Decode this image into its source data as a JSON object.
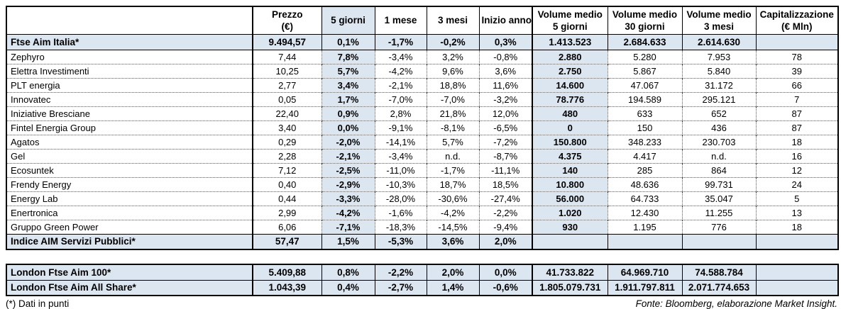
{
  "colors": {
    "highlight": "#dce6f1",
    "border": "#000000",
    "text": "#000000",
    "page_bg": "#ffffff"
  },
  "footnote": "(*) Dati in punti",
  "source": "Fonte: Bloomberg, elaborazione Market Insight.",
  "main_table": {
    "columns": [
      {
        "key": "name",
        "line1": "",
        "line2": "",
        "highlight": false
      },
      {
        "key": "prezzo",
        "line1": "Prezzo",
        "line2": "(€)",
        "highlight": false
      },
      {
        "key": "5-giorni",
        "line1": "5 giorni",
        "line2": "",
        "highlight": true
      },
      {
        "key": "1-mese",
        "line1": "1 mese",
        "line2": "",
        "highlight": false
      },
      {
        "key": "3-mesi",
        "line1": "3 mesi",
        "line2": "",
        "highlight": false
      },
      {
        "key": "inizio-anno",
        "line1": "Inizio anno",
        "line2": "",
        "highlight": false
      },
      {
        "key": "volume-medio-5-giorni",
        "line1": "Volume medio",
        "line2": "5 giorni",
        "highlight": false
      },
      {
        "key": "volume-medio-30-giorni",
        "line1": "Volume medio",
        "line2": "30 giorni",
        "highlight": false
      },
      {
        "key": "volume-medio-3-mesi",
        "line1": "Volume medio",
        "line2": "3 mesi",
        "highlight": false
      },
      {
        "key": "capitalizzazione",
        "line1": "Capitalizzazione",
        "line2": "(€ Mln)",
        "highlight": false
      }
    ],
    "rows": [
      {
        "type": "index",
        "name": "Ftse Aim Italia*",
        "values": [
          "9.494,57",
          "0,1%",
          "-1,7%",
          "-0,2%",
          "0,3%",
          "1.413.523",
          "2.684.633",
          "2.614.630",
          ""
        ]
      },
      {
        "type": "stock",
        "name": "Zephyro",
        "values": [
          "7,44",
          "7,8%",
          "-3,4%",
          "3,2%",
          "-0,8%",
          "2.880",
          "5.280",
          "7.953",
          "78"
        ]
      },
      {
        "type": "stock",
        "name": "Elettra Investimenti",
        "values": [
          "10,25",
          "5,7%",
          "-4,2%",
          "9,6%",
          "3,6%",
          "2.750",
          "5.867",
          "5.840",
          "39"
        ]
      },
      {
        "type": "stock",
        "name": "PLT energia",
        "values": [
          "2,77",
          "3,4%",
          "-2,1%",
          "18,8%",
          "11,6%",
          "14.600",
          "47.067",
          "31.172",
          "66"
        ]
      },
      {
        "type": "stock",
        "name": "Innovatec",
        "values": [
          "0,05",
          "1,7%",
          "-7,0%",
          "-7,0%",
          "-3,2%",
          "78.776",
          "194.589",
          "295.121",
          "7"
        ]
      },
      {
        "type": "stock",
        "name": "Iniziative Bresciane",
        "values": [
          "22,40",
          "0,9%",
          "2,8%",
          "21,8%",
          "12,0%",
          "480",
          "633",
          "652",
          "87"
        ]
      },
      {
        "type": "stock",
        "name": "Fintel Energia Group",
        "values": [
          "3,40",
          "0,0%",
          "-9,1%",
          "-8,1%",
          "-6,5%",
          "0",
          "150",
          "436",
          "87"
        ]
      },
      {
        "type": "stock",
        "name": "Agatos",
        "values": [
          "0,29",
          "-2,0%",
          "-14,1%",
          "5,7%",
          "-7,2%",
          "150.800",
          "348.233",
          "230.703",
          "18"
        ]
      },
      {
        "type": "stock",
        "name": "Gel",
        "values": [
          "2,28",
          "-2,1%",
          "-3,4%",
          "n.d.",
          "-8,7%",
          "4.375",
          "4.417",
          "n.d.",
          "16"
        ]
      },
      {
        "type": "stock",
        "name": "Ecosuntek",
        "values": [
          "7,12",
          "-2,5%",
          "-11,0%",
          "-1,7%",
          "-11,1%",
          "140",
          "285",
          "864",
          "12"
        ]
      },
      {
        "type": "stock",
        "name": "Frendy Energy",
        "values": [
          "0,40",
          "-2,9%",
          "-10,3%",
          "18,7%",
          "18,5%",
          "10.800",
          "48.636",
          "99.731",
          "24"
        ]
      },
      {
        "type": "stock",
        "name": "Energy Lab",
        "values": [
          "0,44",
          "-3,3%",
          "-28,0%",
          "-30,6%",
          "-27,4%",
          "56.000",
          "64.733",
          "35.047",
          "5"
        ]
      },
      {
        "type": "stock",
        "name": "Enertronica",
        "values": [
          "2,99",
          "-4,2%",
          "-1,6%",
          "-4,2%",
          "-2,2%",
          "1.020",
          "12.430",
          "11.255",
          "13"
        ]
      },
      {
        "type": "stock",
        "name": "Gruppo Green Power",
        "values": [
          "6,06",
          "-7,1%",
          "-18,3%",
          "-14,5%",
          "-9,4%",
          "930",
          "1.195",
          "776",
          "18"
        ]
      },
      {
        "type": "index",
        "name": "Indice AIM Servizi Pubblici*",
        "values": [
          "57,47",
          "1,5%",
          "-5,3%",
          "3,6%",
          "2,0%",
          "",
          "",
          "",
          ""
        ]
      }
    ]
  },
  "london_table": {
    "rows": [
      {
        "type": "index",
        "name": "London Ftse Aim 100*",
        "values": [
          "5.409,88",
          "0,8%",
          "-2,2%",
          "2,0%",
          "0,0%",
          "41.733.822",
          "64.969.710",
          "74.588.784",
          ""
        ]
      },
      {
        "type": "index",
        "name": "London Ftse Aim All Share*",
        "values": [
          "1.043,39",
          "0,4%",
          "-2,7%",
          "1,4%",
          "-0,6%",
          "1.805.079.731",
          "1.911.797.811",
          "2.071.774.653",
          ""
        ]
      }
    ]
  }
}
